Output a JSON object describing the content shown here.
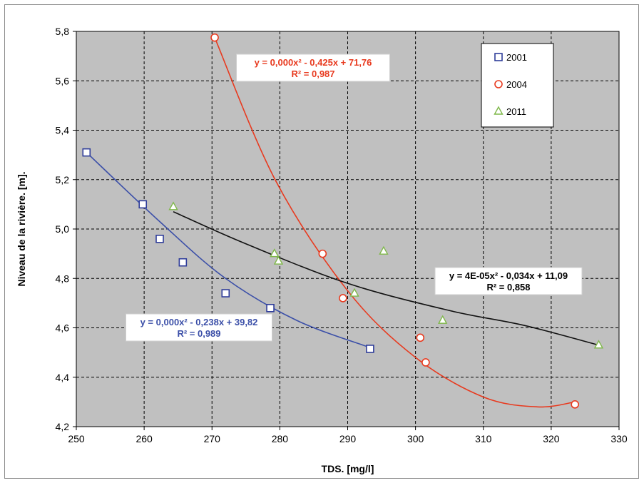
{
  "chart_data": {
    "type": "scatter",
    "title": "",
    "xlabel": "TDS. [mg/l]",
    "ylabel": "Niveau de la rivière. [m].",
    "xlim": [
      250,
      330
    ],
    "ylim": [
      4.2,
      5.8
    ],
    "x_ticks": [
      "250",
      "260",
      "270",
      "280",
      "290",
      "300",
      "310",
      "320",
      "330"
    ],
    "y_ticks": [
      "4,2",
      "4,4",
      "4,6",
      "4,8",
      "5,0",
      "5,2",
      "5,4",
      "5,6",
      "5,8"
    ],
    "grid": true,
    "legend_position": "top-right",
    "plot_background": "#c0c0c0",
    "series": [
      {
        "name": "2001",
        "marker": "square",
        "color": "#2f3d9a",
        "points": [
          [
            251.5,
            5.31
          ],
          [
            259.8,
            5.1
          ],
          [
            262.3,
            4.96
          ],
          [
            265.7,
            4.865
          ],
          [
            272.0,
            4.74
          ],
          [
            278.6,
            4.68
          ],
          [
            293.3,
            4.515
          ]
        ],
        "trendline": {
          "label_line1": "y = 0,000x² - 0,238x + 39,82",
          "label_line2": "R² = 0,989",
          "color": "#3b4fa8",
          "fit_points": [
            [
              251.5,
              5.31
            ],
            [
              262.3,
              5.03
            ],
            [
              272.0,
              4.8
            ],
            [
              282.5,
              4.63
            ],
            [
              293.3,
              4.52
            ]
          ]
        }
      },
      {
        "name": "2004",
        "marker": "circle",
        "color": "#e83a1f",
        "points": [
          [
            270.4,
            5.775
          ],
          [
            286.3,
            4.9
          ],
          [
            289.3,
            4.72
          ],
          [
            300.7,
            4.56
          ],
          [
            301.5,
            4.46
          ],
          [
            323.5,
            4.29
          ]
        ],
        "trendline": {
          "label_line1": "y = 0,000x² - 0,425x + 71,76",
          "label_line2": "R² = 0,987",
          "color": "#e83a1f",
          "fit_points": [
            [
              270.4,
              5.775
            ],
            [
              279.3,
              5.2
            ],
            [
              290.0,
              4.75
            ],
            [
              300.0,
              4.48
            ],
            [
              310.0,
              4.32
            ],
            [
              318.0,
              4.28
            ],
            [
              323.5,
              4.3
            ]
          ]
        }
      },
      {
        "name": "2011",
        "marker": "triangle",
        "color": "#7fb84a",
        "points": [
          [
            264.3,
            5.09
          ],
          [
            279.2,
            4.9
          ],
          [
            279.8,
            4.87
          ],
          [
            291.0,
            4.74
          ],
          [
            295.3,
            4.91
          ],
          [
            304.0,
            4.63
          ],
          [
            327.0,
            4.53
          ]
        ],
        "trendline": {
          "label_line1": "y = 4E-05x² - 0,034x + 11,09",
          "label_line2": "R² = 0,858",
          "color": "#111111",
          "fit_points": [
            [
              264.3,
              5.07
            ],
            [
              275.0,
              4.94
            ],
            [
              290.0,
              4.78
            ],
            [
              305.0,
              4.67
            ],
            [
              316.0,
              4.61
            ],
            [
              327.0,
              4.53
            ]
          ]
        }
      }
    ]
  }
}
